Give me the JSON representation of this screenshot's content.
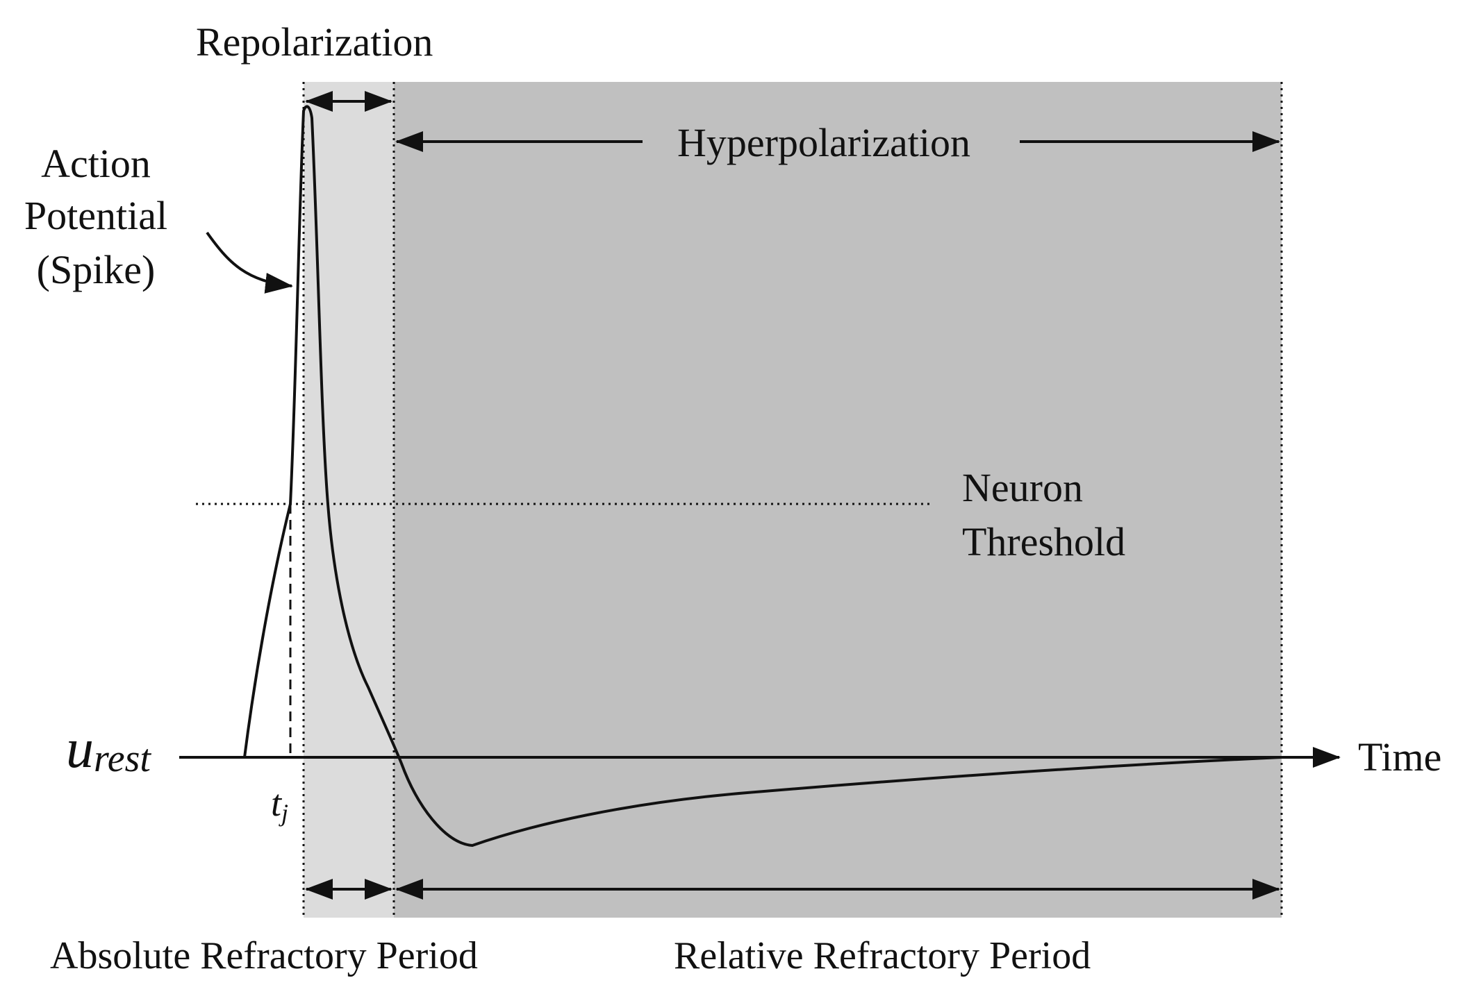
{
  "labels": {
    "repolarization": "Repolarization",
    "action_potential_line1": "Action",
    "action_potential_line2": "Potential",
    "action_potential_line3": "(Spike)",
    "hyperpolarization": "Hyperpolarization",
    "neuron_threshold_line1": "Neuron",
    "neuron_threshold_line2": "Threshold",
    "u_rest_base": "u",
    "u_rest_sub": "rest",
    "time": "Time",
    "t_base": "t",
    "t_sub": "j",
    "absolute_refractory": "Absolute Refractory Period",
    "relative_refractory": "Relative Refractory Period"
  },
  "colors": {
    "absolute_region": "#dcdcdc",
    "relative_region": "#c0c0c0",
    "line": "#111111"
  }
}
